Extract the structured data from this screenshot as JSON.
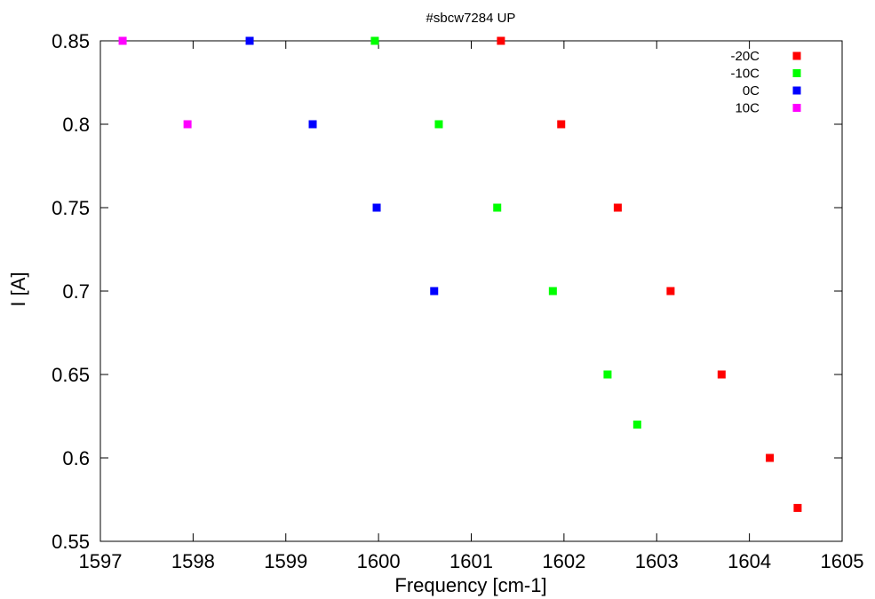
{
  "chart_data": {
    "type": "scatter",
    "title": "#sbcw7284 UP",
    "xlabel": "Frequency [cm-1]",
    "ylabel": "I [A]",
    "xlim": [
      1597,
      1605
    ],
    "ylim": [
      0.55,
      0.85
    ],
    "x_ticks": [
      "1597",
      "1598",
      "1599",
      "1600",
      "1601",
      "1602",
      "1603",
      "1604",
      "1605"
    ],
    "y_ticks": [
      "0.55",
      "0.6",
      "0.65",
      "0.7",
      "0.75",
      "0.8",
      "0.85"
    ],
    "grid": false,
    "legend_position": "top-right",
    "series": [
      {
        "name": "-20C",
        "color": "#ff0000",
        "points": [
          {
            "x": 1601.32,
            "y": 0.85
          },
          {
            "x": 1601.97,
            "y": 0.8
          },
          {
            "x": 1602.58,
            "y": 0.75
          },
          {
            "x": 1603.15,
            "y": 0.7
          },
          {
            "x": 1603.7,
            "y": 0.65
          },
          {
            "x": 1604.22,
            "y": 0.6
          },
          {
            "x": 1604.52,
            "y": 0.57
          }
        ]
      },
      {
        "name": "-10C",
        "color": "#00ff00",
        "points": [
          {
            "x": 1599.96,
            "y": 0.85
          },
          {
            "x": 1600.65,
            "y": 0.8
          },
          {
            "x": 1601.28,
            "y": 0.75
          },
          {
            "x": 1601.88,
            "y": 0.7
          },
          {
            "x": 1602.47,
            "y": 0.65
          },
          {
            "x": 1602.79,
            "y": 0.62
          }
        ]
      },
      {
        "name": "0C",
        "color": "#0000ff",
        "points": [
          {
            "x": 1598.61,
            "y": 0.85
          },
          {
            "x": 1599.29,
            "y": 0.8
          },
          {
            "x": 1599.98,
            "y": 0.75
          },
          {
            "x": 1600.6,
            "y": 0.7
          }
        ]
      },
      {
        "name": "10C",
        "color": "#ff00ff",
        "points": [
          {
            "x": 1597.24,
            "y": 0.85
          },
          {
            "x": 1597.94,
            "y": 0.8
          }
        ]
      }
    ]
  }
}
